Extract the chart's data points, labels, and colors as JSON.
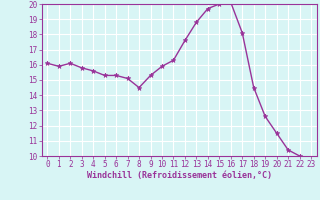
{
  "x": [
    0,
    1,
    2,
    3,
    4,
    5,
    6,
    7,
    8,
    9,
    10,
    11,
    12,
    13,
    14,
    15,
    16,
    17,
    18,
    19,
    20,
    21,
    22,
    23
  ],
  "y": [
    16.1,
    15.9,
    16.1,
    15.8,
    15.6,
    15.3,
    15.3,
    15.1,
    14.5,
    15.3,
    15.9,
    16.3,
    17.6,
    18.8,
    19.7,
    20.0,
    20.1,
    18.1,
    14.5,
    12.6,
    11.5,
    10.4,
    10.0,
    9.8
  ],
  "line_color": "#993399",
  "marker": "*",
  "marker_size": 3.5,
  "bg_color": "#d8f5f5",
  "grid_color": "#ffffff",
  "xlabel": "Windchill (Refroidissement éolien,°C)",
  "xlabel_color": "#993399",
  "tick_color": "#993399",
  "ylim": [
    10,
    20
  ],
  "xlim": [
    -0.5,
    23.5
  ],
  "yticks": [
    10,
    11,
    12,
    13,
    14,
    15,
    16,
    17,
    18,
    19,
    20
  ],
  "xticks": [
    0,
    1,
    2,
    3,
    4,
    5,
    6,
    7,
    8,
    9,
    10,
    11,
    12,
    13,
    14,
    15,
    16,
    17,
    18,
    19,
    20,
    21,
    22,
    23
  ],
  "tick_fontsize": 5.5,
  "xlabel_fontsize": 6.0,
  "linewidth": 1.0
}
